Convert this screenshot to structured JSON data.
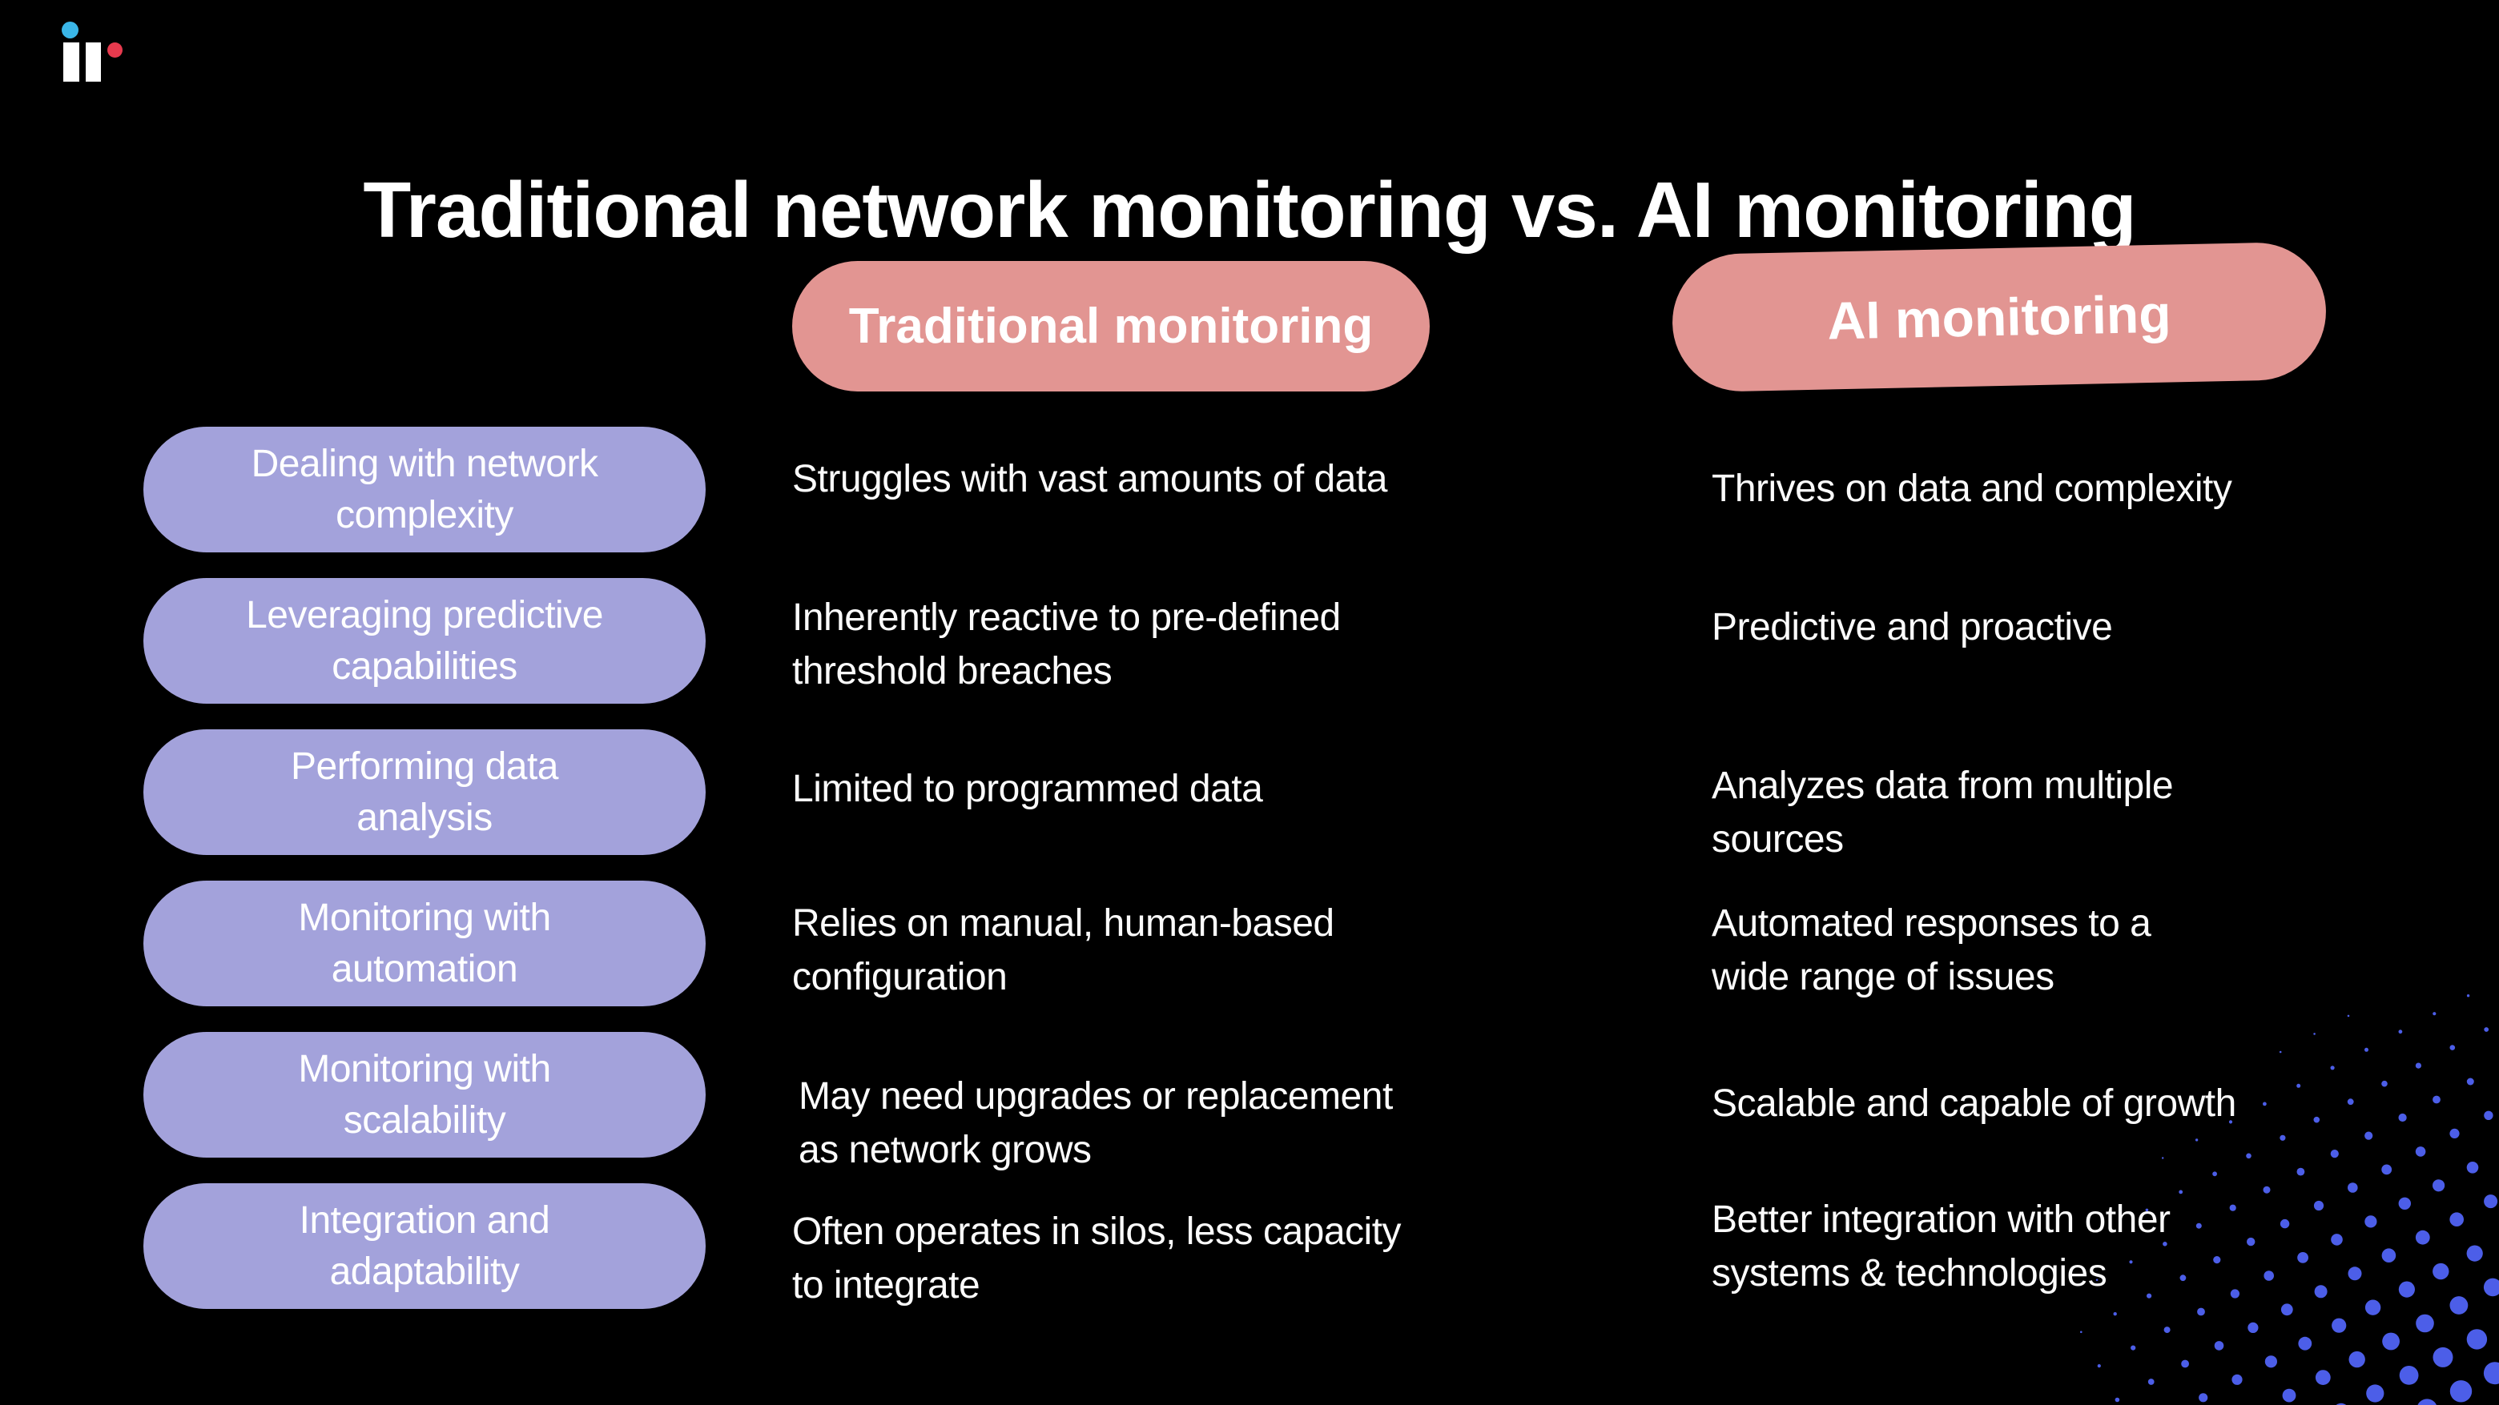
{
  "title": "Traditional network monitoring vs. AI monitoring",
  "logo": {
    "name": "ir logo",
    "blue_dot_color": "#3ab6e8",
    "red_dot_color": "#e73a4e",
    "bar_color": "#ffffff"
  },
  "headers": {
    "traditional": "Traditional monitoring",
    "ai": "AI monitoring"
  },
  "rows": [
    {
      "label": "Dealing with network\ncomplexity",
      "traditional": "Struggles with vast amounts of data",
      "ai": "Thrives on data and complexity"
    },
    {
      "label": "Leveraging predictive\ncapabilities",
      "traditional": "Inherently reactive to pre-defined\nthreshold breaches",
      "ai": "Predictive and proactive"
    },
    {
      "label": "Performing data\nanalysis",
      "traditional": "Limited to programmed data",
      "ai": "Analyzes data from multiple\nsources"
    },
    {
      "label": "Monitoring with\nautomation",
      "traditional": "Relies on manual, human-based\nconfiguration",
      "ai": "Automated responses to a\nwide range of issues"
    },
    {
      "label": "Monitoring with\nscalability",
      "traditional": "May need upgrades or replacement\nas network grows",
      "ai": "Scalable and capable of growth"
    },
    {
      "label": "Integration and\nadaptability",
      "traditional": "Often operates in silos, less capacity\nto integrate",
      "ai": "Better integration with other\nsystems & technologies"
    }
  ],
  "colors": {
    "background": "#000000",
    "header_pill": "#e29592",
    "label_pill": "#a3a2db",
    "text": "#fbfbfb",
    "dots": "#4c5ee8"
  }
}
